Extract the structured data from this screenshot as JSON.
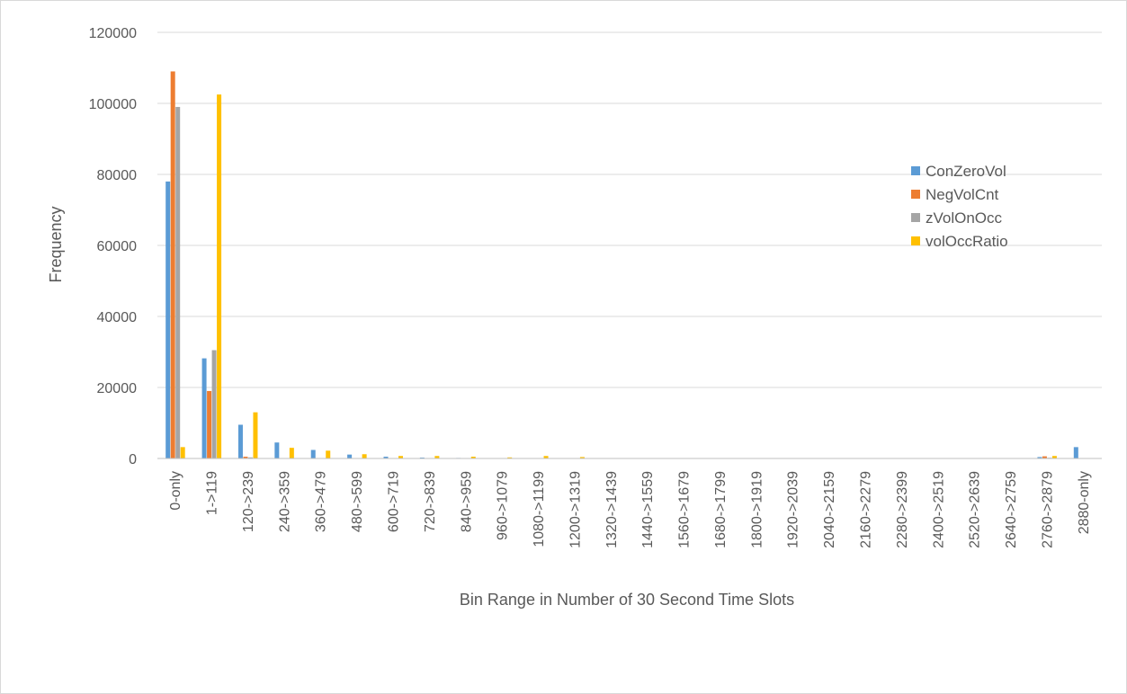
{
  "chart_data": {
    "type": "bar",
    "title": "",
    "xlabel": "Bin Range in Number of 30 Second Time Slots",
    "ylabel": "Frequency",
    "ylim": [
      0,
      120000
    ],
    "yticks": [
      "0",
      "20000",
      "40000",
      "60000",
      "80000",
      "100000",
      "120000"
    ],
    "grid": true,
    "legend_position": "right",
    "categories": [
      "0-only",
      "1->119",
      "120->239",
      "240->359",
      "360->479",
      "480->599",
      "600->719",
      "720->839",
      "840->959",
      "960->1079",
      "1080->1199",
      "1200->1319",
      "1320->1439",
      "1440->1559",
      "1560->1679",
      "1680->1799",
      "1800->1919",
      "1920->2039",
      "2040->2159",
      "2160->2279",
      "2280->2399",
      "2400->2519",
      "2520->2639",
      "2640->2759",
      "2760->2879",
      "2880-only"
    ],
    "series": [
      {
        "name": "ConZeroVol",
        "color": "#5b9bd5",
        "values": [
          78000,
          28200,
          9500,
          4500,
          2400,
          1100,
          500,
          250,
          150,
          100,
          80,
          60,
          40,
          30,
          20,
          20,
          20,
          20,
          20,
          20,
          20,
          20,
          20,
          20,
          400,
          3200
        ]
      },
      {
        "name": "NegVolCnt",
        "color": "#ed7d31",
        "values": [
          109000,
          19000,
          500,
          100,
          50,
          30,
          20,
          10,
          10,
          10,
          10,
          10,
          10,
          10,
          10,
          10,
          10,
          10,
          10,
          10,
          10,
          10,
          10,
          10,
          600,
          0
        ]
      },
      {
        "name": "zVolOnOcc",
        "color": "#a5a5a5",
        "values": [
          99000,
          30500,
          300,
          100,
          50,
          30,
          20,
          10,
          10,
          10,
          10,
          10,
          10,
          10,
          10,
          10,
          10,
          10,
          10,
          10,
          10,
          10,
          10,
          10,
          200,
          0
        ]
      },
      {
        "name": "volOccRatio",
        "color": "#ffc000",
        "values": [
          3200,
          102500,
          13000,
          3000,
          2200,
          1200,
          700,
          700,
          500,
          300,
          700,
          400,
          100,
          100,
          50,
          50,
          50,
          50,
          50,
          50,
          50,
          50,
          50,
          50,
          700,
          0
        ]
      }
    ]
  }
}
